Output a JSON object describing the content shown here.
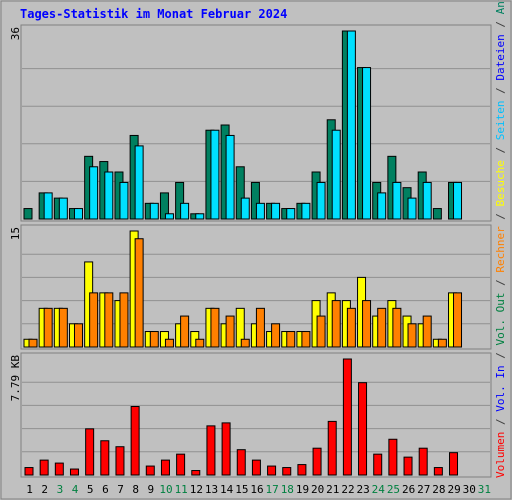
{
  "colors": {
    "background": "#c0c0c0",
    "frame": "#808080",
    "gridline": "#909090",
    "title": "#0000ff",
    "axis_text": "#000000",
    "day_black": "#000000",
    "day_weekend": "#008040",
    "legend_hits": "#008060",
    "legend_files": "#0000ff",
    "legend_pages": "#00c0ff",
    "legend_visits": "#ffff00",
    "legend_hosts": "#ff8000",
    "legend_volume_out": "#008040",
    "legend_volume_in": "#0000ff",
    "legend_volume": "#ff0000",
    "sep": "#404040",
    "hits_fill": "#008060",
    "files_fill": "#00e0ff",
    "visits_fill": "#ffff00",
    "hosts_fill": "#ff8000",
    "volume_fill": "#ff0000"
  },
  "chart_data": [
    {
      "type": "bar",
      "panel": "top",
      "title": "Tages-Statistik im Monat Februar 2024",
      "ylabel": "36",
      "ylim": [
        0,
        36
      ],
      "gridlines": 5,
      "categories": [
        "1",
        "2",
        "3",
        "4",
        "5",
        "6",
        "7",
        "8",
        "9",
        "10",
        "11",
        "12",
        "13",
        "14",
        "15",
        "16",
        "17",
        "18",
        "19",
        "20",
        "21",
        "22",
        "23",
        "24",
        "25",
        "26",
        "27",
        "28",
        "29",
        "30",
        "31"
      ],
      "weekend_days": [
        "3",
        "4",
        "10",
        "11",
        "17",
        "18",
        "24",
        "25",
        "31"
      ],
      "series": [
        {
          "name": "Anfragen",
          "values": [
            2,
            5,
            4,
            2,
            12,
            11,
            9,
            16,
            3,
            5,
            7,
            1,
            17,
            18,
            10,
            7,
            3,
            2,
            3,
            9,
            19,
            36,
            29,
            7,
            12,
            6,
            9,
            2,
            7,
            0,
            0
          ]
        },
        {
          "name": "Dateien",
          "values": [
            0,
            5,
            4,
            2,
            10,
            9,
            7,
            14,
            3,
            1,
            3,
            1,
            17,
            16,
            4,
            3,
            3,
            2,
            3,
            7,
            17,
            36,
            29,
            5,
            7,
            4,
            7,
            0,
            7,
            0,
            0
          ]
        }
      ]
    },
    {
      "type": "bar",
      "panel": "middle",
      "ylabel": "15",
      "ylim": [
        0,
        15
      ],
      "gridlines": 5,
      "series": [
        {
          "name": "Besuche",
          "values": [
            1,
            5,
            5,
            3,
            11,
            7,
            6,
            15,
            2,
            2,
            3,
            2,
            5,
            3,
            5,
            3,
            2,
            2,
            2,
            6,
            7,
            6,
            9,
            4,
            6,
            4,
            3,
            1,
            7,
            0,
            0
          ]
        },
        {
          "name": "Rechner",
          "values": [
            1,
            5,
            5,
            3,
            7,
            7,
            7,
            14,
            2,
            1,
            4,
            1,
            5,
            4,
            1,
            5,
            3,
            2,
            2,
            4,
            6,
            5,
            6,
            5,
            5,
            3,
            4,
            1,
            7,
            0,
            0
          ]
        }
      ]
    },
    {
      "type": "bar",
      "panel": "bottom",
      "ylabel": "7.79 KB",
      "ylim": [
        0,
        7.79
      ],
      "gridlines": 5,
      "series": [
        {
          "name": "Volumen",
          "values": [
            0.5,
            1.0,
            0.8,
            0.4,
            3.1,
            2.3,
            1.9,
            4.6,
            0.6,
            1.0,
            1.4,
            0.3,
            3.3,
            3.5,
            1.7,
            1.0,
            0.6,
            0.5,
            0.7,
            1.8,
            3.6,
            7.79,
            6.2,
            1.4,
            2.4,
            1.2,
            1.8,
            0.5,
            1.5,
            0,
            0
          ]
        }
      ]
    }
  ],
  "legend": {
    "top": [
      "Anfragen",
      "/",
      "Dateien",
      "/",
      "Seiten",
      "/"
    ],
    "middle": [
      "Besuche",
      "/",
      "Rechner",
      "/"
    ],
    "bottom": [
      "Vol. Out",
      "/",
      "Vol. In",
      "/",
      "Volumen"
    ]
  }
}
